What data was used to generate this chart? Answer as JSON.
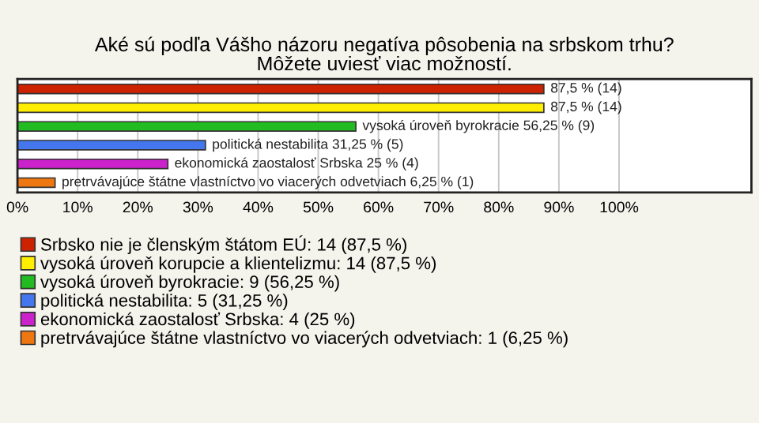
{
  "chart_data": {
    "type": "bar",
    "orientation": "horizontal",
    "stacked": true,
    "title": "Aké sú podľa Vášho názoru negatíva pôsobenia na srbskom trhu?\nMôžete uviesť viac možností.",
    "categories": [
      null,
      null,
      null,
      null,
      null,
      null
    ],
    "series": [
      {
        "name": "Srbsko nie je členským štátom EÚ: 14 (87,5 %)",
        "color": "#cc2200",
        "values": [
          87.5,
          null,
          null,
          null,
          null,
          null
        ],
        "value_labels": [
          "87,5 % (14)",
          null,
          null,
          null,
          null,
          null
        ]
      },
      {
        "name": "vysoká úroveň korupcie a klientelizmu: 14 (87,5 %)",
        "color": "#ffee00",
        "values": [
          null,
          87.5,
          null,
          null,
          null,
          null
        ],
        "value_labels": [
          null,
          "87,5 % (14)",
          null,
          null,
          null,
          null
        ]
      },
      {
        "name": "vysoká úroveň byrokracie: 9 (56,25 %)",
        "color": "#22bb22",
        "values": [
          null,
          null,
          56.25,
          null,
          null,
          null
        ],
        "value_labels": [
          null,
          null,
          "vysoká úroveň byrokracie 56,25 % (9)",
          null,
          null,
          null
        ]
      },
      {
        "name": "politická nestabilita: 5 (31,25 %)",
        "color": "#4477ee",
        "values": [
          null,
          null,
          null,
          31.25,
          null,
          null
        ],
        "value_labels": [
          null,
          null,
          null,
          "politická nestabilita 31,25 % (5)",
          null,
          null
        ]
      },
      {
        "name": "ekonomická zaostalosť Srbska: 4 (25 %)",
        "color": "#cc22cc",
        "values": [
          null,
          null,
          null,
          null,
          25,
          null
        ],
        "value_labels": [
          null,
          null,
          null,
          null,
          "ekonomická zaostalosť Srbska 25 % (4)",
          null
        ]
      },
      {
        "name": "pretrvávajúce štátne vlastníctvo vo viacerých odvetviach: 1 (6,25 %)",
        "color": "#ee7711",
        "values": [
          null,
          null,
          null,
          null,
          null,
          6.25
        ],
        "value_labels": [
          null,
          null,
          null,
          null,
          null,
          "pretrvávajúce štátne vlastníctvo vo viacerých odvetviach 6,25 % (1)"
        ]
      }
    ],
    "xlim": [
      0,
      122
    ],
    "xticks": [
      {
        "value": 0,
        "label": "0%"
      },
      {
        "value": 10,
        "label": "10%"
      },
      {
        "value": 20,
        "label": "20%"
      },
      {
        "value": 30,
        "label": "30%"
      },
      {
        "value": 40,
        "label": "40%"
      },
      {
        "value": 50,
        "label": "50%"
      },
      {
        "value": 60,
        "label": "60%"
      },
      {
        "value": 70,
        "label": "70%"
      },
      {
        "value": 80,
        "label": "80%"
      },
      {
        "value": 90,
        "label": "90%"
      },
      {
        "value": 100,
        "label": "100%"
      }
    ],
    "grid": "x",
    "legend": "bottom",
    "tick_labels": "x"
  }
}
